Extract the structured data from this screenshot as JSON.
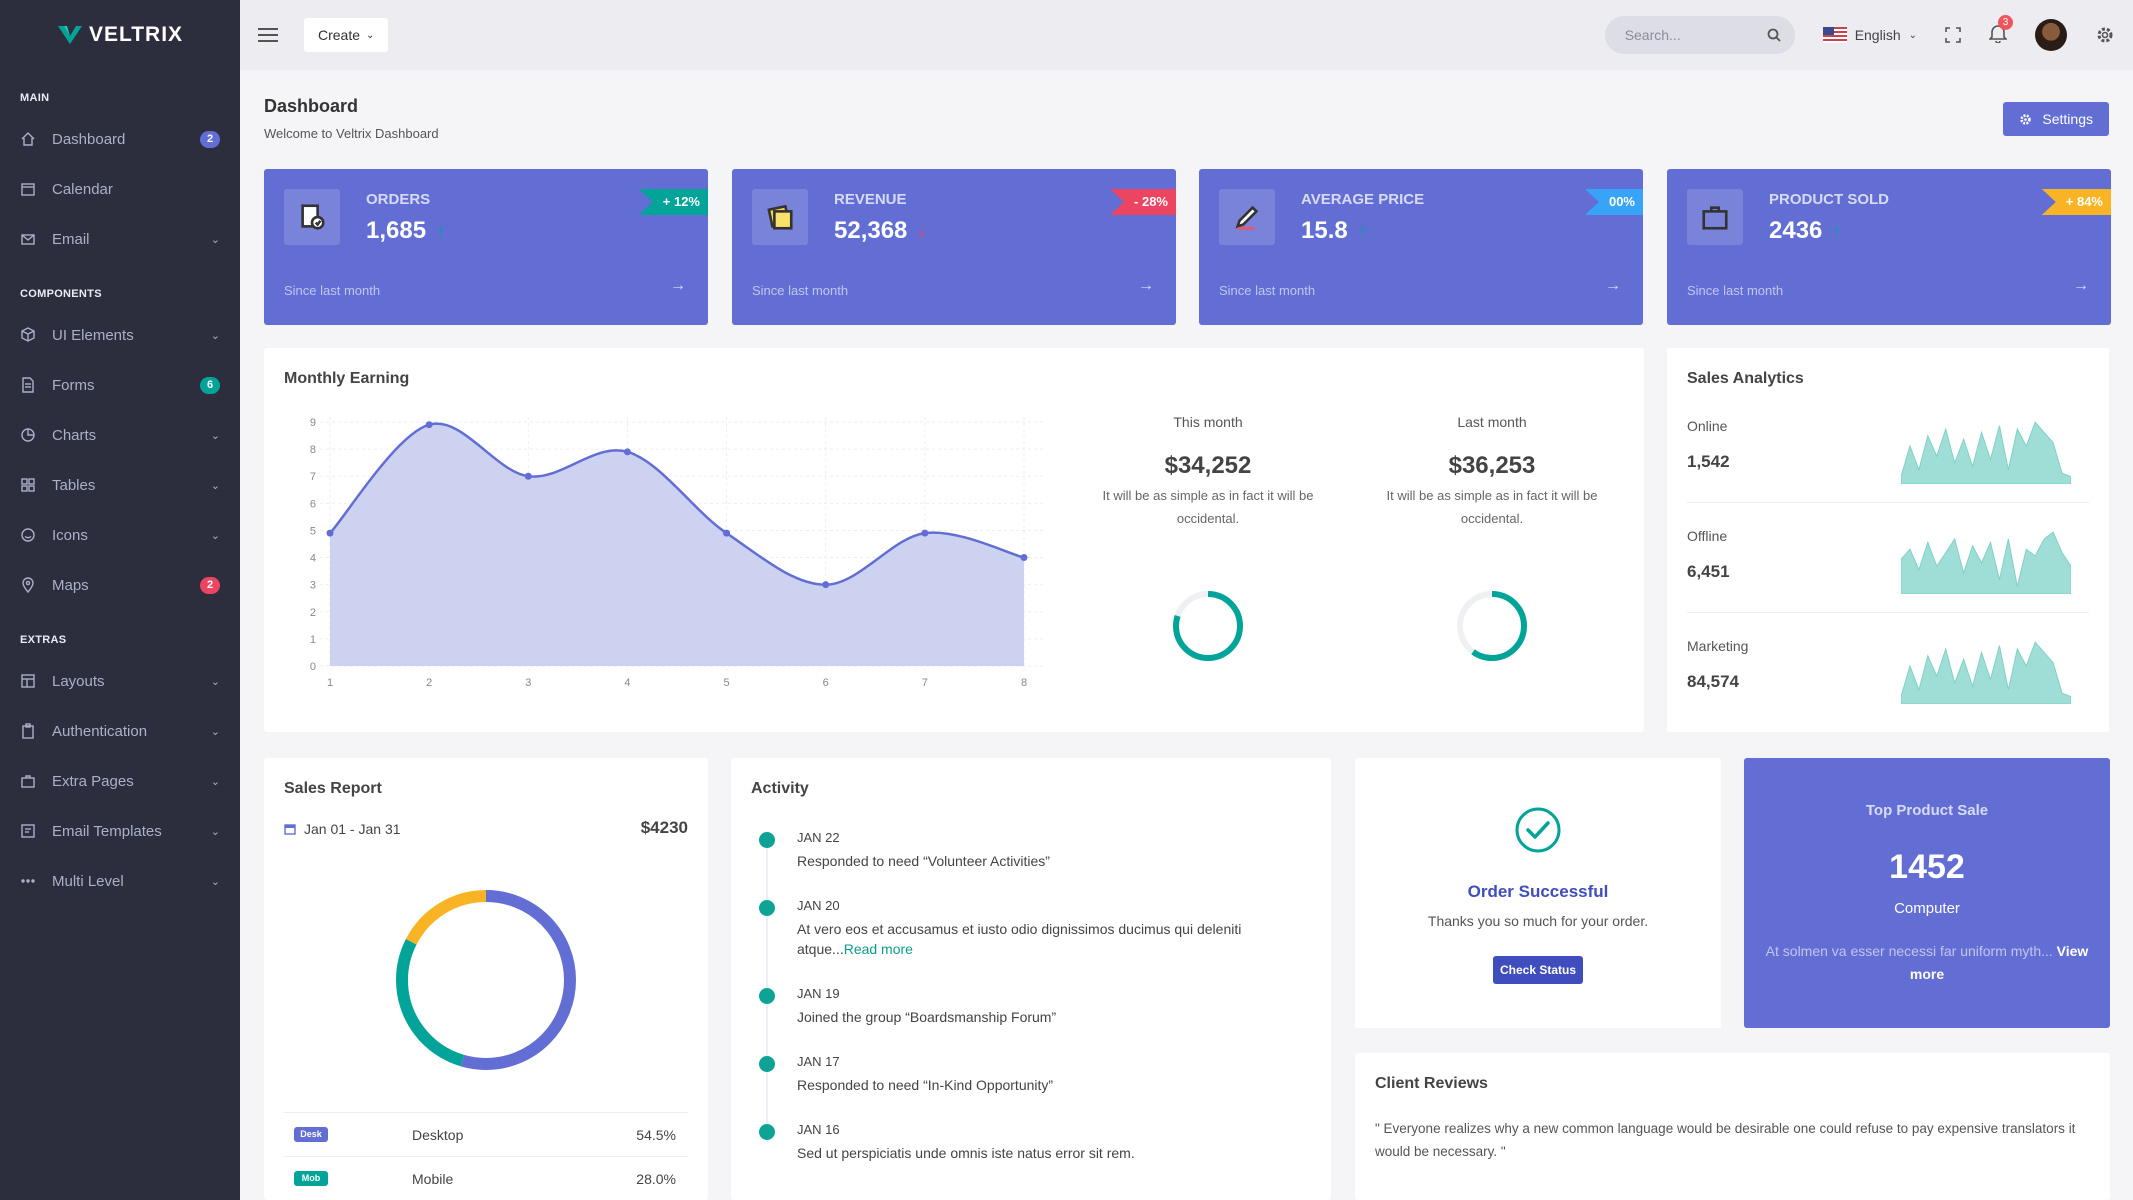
{
  "brand": {
    "name": "VELTRIX"
  },
  "sidebar": {
    "sections": [
      {
        "title": "MAIN"
      },
      {
        "title": "COMPONENTS"
      },
      {
        "title": "EXTRAS"
      }
    ],
    "items": [
      {
        "label": "Dashboard",
        "icon": "home-icon",
        "badge": "2",
        "badge_color": "#626ed4"
      },
      {
        "label": "Calendar",
        "icon": "calendar-icon"
      },
      {
        "label": "Email",
        "icon": "mail-icon",
        "chevron": true
      },
      {
        "label": "UI Elements",
        "icon": "cube-icon",
        "chevron": true
      },
      {
        "label": "Forms",
        "icon": "file-icon",
        "badge": "6",
        "badge_color": "#02a499"
      },
      {
        "label": "Charts",
        "icon": "pie-chart-icon",
        "chevron": true
      },
      {
        "label": "Tables",
        "icon": "grid-icon",
        "chevron": true
      },
      {
        "label": "Icons",
        "icon": "smile-icon",
        "chevron": true
      },
      {
        "label": "Maps",
        "icon": "map-pin-icon",
        "badge": "2",
        "badge_color": "#ec4561"
      },
      {
        "label": "Layouts",
        "icon": "layout-icon",
        "chevron": true
      },
      {
        "label": "Authentication",
        "icon": "clipboard-icon",
        "chevron": true
      },
      {
        "label": "Extra Pages",
        "icon": "briefcase-icon",
        "chevron": true
      },
      {
        "label": "Email Templates",
        "icon": "email-template-icon",
        "chevron": true
      },
      {
        "label": "Multi Level",
        "icon": "dots-icon",
        "chevron": true
      }
    ]
  },
  "topbar": {
    "create_label": "Create",
    "search_placeholder": "Search...",
    "language": "English",
    "notification_count": "3"
  },
  "header": {
    "title": "Dashboard",
    "subtitle": "Welcome to Veltrix Dashboard",
    "settings_label": "Settings"
  },
  "stats": [
    {
      "title": "Orders",
      "value": "1,685",
      "trend": "up",
      "badge": "+ 12%",
      "badge_color": "#02a499",
      "since": "Since last month",
      "icon": "order-icon"
    },
    {
      "title": "Revenue",
      "value": "52,368",
      "trend": "down",
      "badge": "- 28%",
      "badge_color": "#ec4561",
      "since": "Since last month",
      "icon": "revenue-icon"
    },
    {
      "title": "Average Price",
      "value": "15.8",
      "trend": "up",
      "badge": "00%",
      "badge_color": "#38a4f8",
      "since": "Since last month",
      "icon": "pencil-icon"
    },
    {
      "title": "Product Sold",
      "value": "2436",
      "trend": "up",
      "badge": "+ 84%",
      "badge_color": "#f8b425",
      "since": "Since last month",
      "icon": "briefcase-icon"
    }
  ],
  "monthly_earning": {
    "title": "Monthly Earning",
    "this_month": {
      "label": "This month",
      "value": "$34,252",
      "desc": "It will be as simple as in fact it will be occidental.",
      "progress": 0.8
    },
    "last_month": {
      "label": "Last month",
      "value": "$36,253",
      "desc": "It will be as simple as in fact it will be occidental.",
      "progress": 0.6
    }
  },
  "chart_data": {
    "type": "area",
    "title": "",
    "x": [
      1,
      2,
      3,
      4,
      5,
      6,
      7,
      8
    ],
    "series": [
      {
        "values": [
          4.9,
          8.9,
          7.0,
          7.9,
          4.9,
          3.0,
          4.9,
          4.0
        ]
      }
    ],
    "xlim": [
      1,
      8
    ],
    "ylim": [
      0,
      9
    ],
    "xticks": [
      "1",
      "2",
      "3",
      "4",
      "5",
      "6",
      "7",
      "8"
    ],
    "yticks": [
      "0",
      "1",
      "2",
      "3",
      "4",
      "5",
      "6",
      "7",
      "8",
      "9"
    ],
    "grid": true,
    "fill_color": "#c9cdef",
    "line_color": "#626ed4"
  },
  "sales_analytics": {
    "title": "Sales Analytics",
    "rows": [
      {
        "label": "Online",
        "value": "1,542"
      },
      {
        "label": "Offline",
        "value": "6,451"
      },
      {
        "label": "Marketing",
        "value": "84,574"
      }
    ],
    "spark_color": "#9fded7"
  },
  "sales_report": {
    "title": "Sales Report",
    "range": "Jan 01 - Jan 31",
    "total": "$4230",
    "donut": [
      {
        "name": "Desktop",
        "fraction": 0.545,
        "color": "#626ed4"
      },
      {
        "name": "Mobile",
        "fraction": 0.28,
        "color": "#02a499"
      },
      {
        "name": "Other",
        "fraction": 0.175,
        "color": "#f8b425"
      }
    ],
    "rows": [
      {
        "badge": "Desk",
        "badge_color": "#626ed4",
        "name": "Desktop",
        "pct": "54.5%"
      },
      {
        "badge": "Mob",
        "badge_color": "#02a499",
        "name": "Mobile",
        "pct": "28.0%"
      }
    ]
  },
  "activity": {
    "title": "Activity",
    "items": [
      {
        "date": "JAN 22",
        "text": "Responded to need “Volunteer Activities”"
      },
      {
        "date": "JAN 20",
        "text": "At vero eos et accusamus et iusto odio dignissimos ducimus qui deleniti atque...",
        "link": "Read more"
      },
      {
        "date": "JAN 19",
        "text": "Joined the group “Boardsmanship Forum”"
      },
      {
        "date": "JAN 17",
        "text": "Responded to need “In-Kind Opportunity”"
      },
      {
        "date": "JAN 16",
        "text": "Sed ut perspiciatis unde omnis iste natus error sit rem."
      }
    ]
  },
  "order": {
    "title": "Order Successful",
    "text": "Thanks you so much for your order.",
    "button": "Check Status"
  },
  "top_product": {
    "label": "Top Product Sale",
    "value": "1452",
    "category": "Computer",
    "desc": "At solmen va esser necessi far uniform myth...",
    "link": "View more"
  },
  "reviews": {
    "title": "Client Reviews",
    "text": "\" Everyone realizes why a new common language would be desirable one could refuse to pay expensive translators it would be necessary. \""
  }
}
